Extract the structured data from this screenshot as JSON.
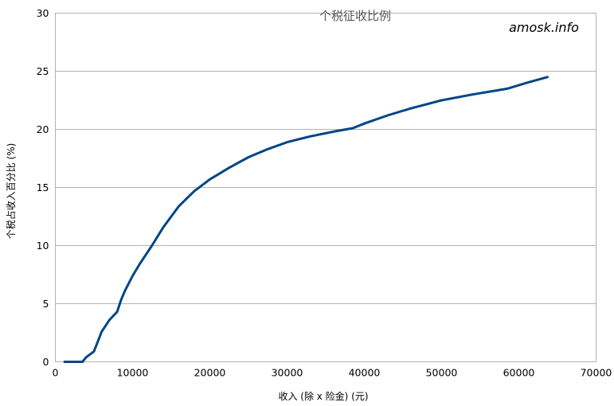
{
  "chart_data": {
    "type": "line",
    "title": "个税征收比例",
    "watermark": "amosk.info",
    "xlabel": "收入 (除 x 险金) (元)",
    "ylabel": "个税占收入百分比 (%)",
    "xlim": [
      0,
      70000
    ],
    "ylim": [
      0,
      30
    ],
    "x_ticks": [
      "0",
      "10000",
      "20000",
      "30000",
      "40000",
      "50000",
      "60000",
      "70000"
    ],
    "y_ticks": [
      "0",
      "5",
      "10",
      "15",
      "20",
      "25",
      "30"
    ],
    "grid": true,
    "line_color": "#004586",
    "series": [
      {
        "x": [
          1200,
          2000,
          3000,
          3500,
          4000,
          5000,
          6000,
          7000,
          8000,
          8500,
          9000,
          10000,
          11000,
          12500,
          14000,
          16000,
          18000,
          20000,
          22500,
          25000,
          27500,
          30000,
          33000,
          36000,
          38500,
          40000,
          43000,
          46000,
          50000,
          54000,
          58500,
          61000,
          63700
        ],
        "y": [
          0,
          0,
          0,
          0,
          0.4,
          0.9,
          2.6,
          3.6,
          4.3,
          5.3,
          6.1,
          7.4,
          8.5,
          10.0,
          11.6,
          13.4,
          14.7,
          15.7,
          16.7,
          17.6,
          18.3,
          18.9,
          19.4,
          19.8,
          20.1,
          20.5,
          21.2,
          21.8,
          22.5,
          23.0,
          23.5,
          24.0,
          24.5
        ]
      }
    ]
  }
}
